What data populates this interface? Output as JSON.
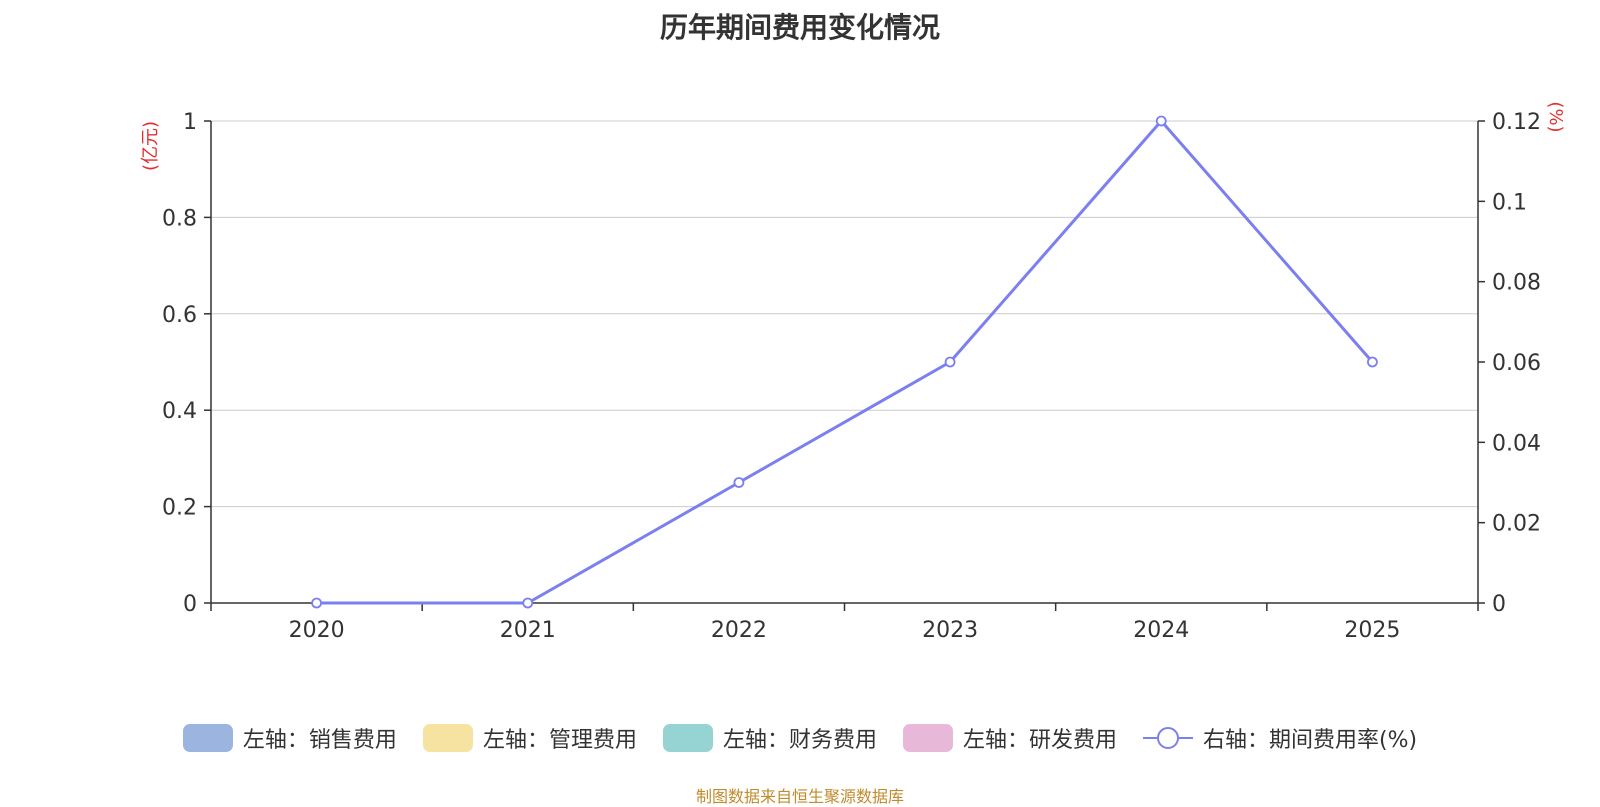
{
  "chart_data": {
    "type": "line",
    "title": "历年期间费用变化情况",
    "categories": [
      "2020",
      "2021",
      "2022",
      "2023",
      "2024",
      "2025"
    ],
    "y_left": {
      "unit_label": "(亿元)",
      "ylim": [
        0,
        1
      ],
      "ticks": [
        "0",
        "0.2",
        "0.4",
        "0.6",
        "0.8",
        "1"
      ],
      "tick_values": [
        0,
        0.2,
        0.4,
        0.6,
        0.8,
        1
      ]
    },
    "y_right": {
      "unit_label": "(%)",
      "ylim": [
        0,
        0.12
      ],
      "ticks": [
        "0",
        "0.02",
        "0.04",
        "0.06",
        "0.08",
        "0.1",
        "0.12"
      ],
      "tick_values": [
        0,
        0.02,
        0.04,
        0.06,
        0.08,
        0.1,
        0.12
      ]
    },
    "grid": true,
    "legend_position": "bottom",
    "series": [
      {
        "name": "左轴：销售费用",
        "axis": "left",
        "kind": "bar",
        "color": "#9bb5e0",
        "values": [
          0,
          0,
          0,
          0,
          0,
          0
        ]
      },
      {
        "name": "左轴：管理费用",
        "axis": "left",
        "kind": "bar",
        "color": "#f7e3a1",
        "values": [
          0,
          0,
          0,
          0,
          0,
          0
        ]
      },
      {
        "name": "左轴：财务费用",
        "axis": "left",
        "kind": "bar",
        "color": "#96d3d3",
        "values": [
          0,
          0,
          0,
          0,
          0,
          0
        ]
      },
      {
        "name": "左轴：研发费用",
        "axis": "left",
        "kind": "bar",
        "color": "#e8b8d8",
        "values": [
          0,
          0,
          0,
          0,
          0,
          0
        ]
      },
      {
        "name": "右轴：期间费用率(%)",
        "axis": "right",
        "kind": "line",
        "color": "#7b7ff0",
        "values": [
          0,
          0,
          0.03,
          0.06,
          0.12,
          0.06
        ]
      }
    ]
  },
  "source_note": "制图数据来自恒生聚源数据库",
  "colors": {
    "axis_unit": "#e03030",
    "source": "#c08b2c",
    "grid": "#cccccc"
  }
}
